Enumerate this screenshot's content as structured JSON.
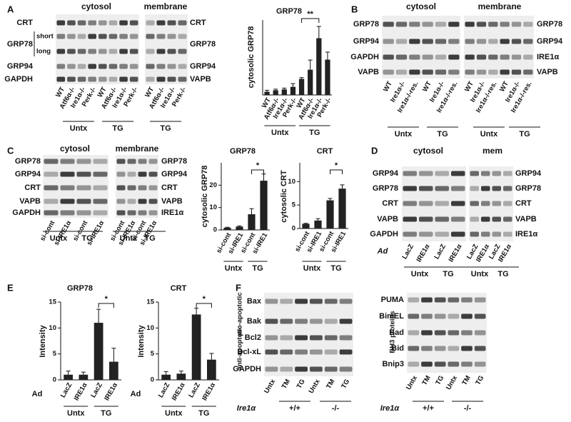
{
  "panels": [
    "A",
    "B",
    "C",
    "D",
    "E",
    "F"
  ],
  "blots": [
    {
      "headers": [
        "cytosol",
        "membrane"
      ],
      "left_labels": [
        "CRT",
        "GRP78",
        "GRP94",
        "GAPDH"
      ],
      "sub_labels": [
        "short",
        "long"
      ],
      "right_labels": [
        "CRT",
        "GRP78",
        "GRP94",
        "VAPB"
      ],
      "lanes": [
        "WT",
        "Atf6α-/-",
        "Ire1α-/-",
        "Perk-/-",
        "WT",
        "Atf6α-/-",
        "Ire1α-/-",
        "Perk-/-",
        "WT",
        "Atf6α-/-",
        "Ire1α-/-",
        "Perk-/-"
      ],
      "groups": [
        "Untx",
        "TG",
        "TG"
      ]
    },
    {
      "headers": [
        "cytosol",
        "membrane"
      ],
      "left_labels": [
        "GRP78",
        "GRP94",
        "GAPDH",
        "VAPB"
      ],
      "right_labels": [
        "GRP78",
        "GRP94",
        "IRE1α",
        "VAPB"
      ],
      "lanes": [
        "WT",
        "Ire1α-/-",
        "Ire1α-/-res.",
        "WT",
        "Ire1α-/-",
        "Ire1α-/-res.",
        "WT",
        "Ire1α-/-",
        "Ire1α-/-res.",
        "WT",
        "Ire1α-/-",
        "Ire1α-/-res."
      ],
      "groups": [
        "Untx",
        "TG",
        "Untx",
        "TG"
      ]
    },
    {
      "headers": [
        "cytosol",
        "membrane"
      ],
      "left_labels": [
        "GRP78",
        "GRP94",
        "CRT",
        "VAPB",
        "GAPDH"
      ],
      "right_labels": [
        "GRP78",
        "GRP94",
        "CRT",
        "VAPB",
        "IRE1α"
      ],
      "lanes": [
        "si-cont",
        "si-IRE1α",
        "si-cont",
        "si-IRE1α",
        "si-cont",
        "si-IRE1α",
        "si-cont",
        "si-IRE1α"
      ],
      "groups": [
        "Untx",
        "TG",
        "Untx",
        "TG"
      ]
    },
    {
      "headers": [
        "cytosol",
        "mem"
      ],
      "left_labels": [
        "GRP94",
        "GRP78",
        "CRT",
        "VAPB",
        "GAPDH"
      ],
      "right_labels": [
        "GRP94",
        "GRP78",
        "CRT",
        "VAPB",
        "IRE1α"
      ],
      "prefix": "Ad",
      "lanes": [
        "LacZ",
        "IRE1α",
        "LacZ",
        "IRE1α",
        "LacZ",
        "IRE1α",
        "LacZ",
        "IRE1α"
      ],
      "groups": [
        "Untx",
        "TG",
        "Untx",
        "TG"
      ]
    },
    {
      "left_labels": [
        "Bax",
        "Bak",
        "Bcl2",
        "Bcl-xL",
        "GAPDH"
      ],
      "side_labels": [
        "pro-apoptotic",
        "anti-apoptotic"
      ],
      "prefix": "Ire1α",
      "lanes": [
        "Untx",
        "TM",
        "TG",
        "Untx",
        "TM",
        "TG"
      ],
      "groups": [
        "+/+",
        "-/-"
      ]
    },
    {
      "left_labels": [
        "PUMA",
        "BimEL",
        "Bad",
        "Bid",
        "Bnip3"
      ],
      "side_labels": [
        "BH3 proteins"
      ],
      "prefix": "Ire1α",
      "lanes": [
        "Untx",
        "TM",
        "TG",
        "Untx",
        "TM",
        "TG"
      ],
      "groups": [
        "+/+",
        "-/-"
      ]
    }
  ],
  "chart_data": [
    {
      "type": "bar",
      "title": "GRP78",
      "ylabel": "cytosolic GRP78",
      "categories": [
        "WT",
        "Atf6α-/-",
        "Ire1α-/-",
        "Perk-/-",
        "WT",
        "Atf6α-/-",
        "Ire1α-/-",
        "Perk-/-"
      ],
      "groups": [
        "Untx",
        "TG"
      ],
      "values": [
        1.5,
        2.2,
        2.6,
        3.8,
        7.5,
        11.8,
        26.5,
        16.5
      ],
      "errors": [
        0.7,
        0.5,
        0.6,
        1.5,
        0.6,
        4.5,
        5.5,
        3.5
      ],
      "ylim": [
        0,
        35
      ],
      "annotation": "**",
      "color": "#222222"
    },
    {
      "type": "bar",
      "title": "GRP78",
      "ylabel": "cytosolic GRP78",
      "categories": [
        "si-cont",
        "si-IRE1",
        "si-cont",
        "si-IRE1"
      ],
      "groups": [
        "Untx",
        "TG"
      ],
      "values": [
        1,
        1.5,
        7,
        22
      ],
      "errors": [
        0.2,
        0.3,
        2.5,
        3
      ],
      "ylim": [
        0,
        30
      ],
      "yticks": [
        0,
        10,
        20
      ],
      "annotation": "*",
      "color": "#222222"
    },
    {
      "type": "bar",
      "title": "CRT",
      "ylabel": "cytosolic CRT",
      "categories": [
        "si-cont",
        "si-IRE1",
        "si-cont",
        "si-IRE1"
      ],
      "groups": [
        "Untx",
        "TG"
      ],
      "values": [
        1,
        1.7,
        6,
        8.5
      ],
      "errors": [
        0.1,
        0.4,
        0.4,
        0.8
      ],
      "ylim": [
        0,
        14
      ],
      "yticks": [
        0,
        5,
        10
      ],
      "annotation": "*",
      "color": "#222222"
    },
    {
      "type": "bar",
      "title": "GRP78",
      "ylabel": "Intensity",
      "prefix": "Ad",
      "categories": [
        "LacZ",
        "IRE1α",
        "LacZ",
        "IRE1α"
      ],
      "groups": [
        "Untx",
        "TG"
      ],
      "values": [
        1,
        1,
        11,
        3.5
      ],
      "errors": [
        0.7,
        0.5,
        2.6,
        2.6
      ],
      "ylim": [
        0,
        15
      ],
      "yticks": [
        0,
        5,
        10,
        15
      ],
      "annotation": "*",
      "color": "#222222"
    },
    {
      "type": "bar",
      "title": "CRT",
      "ylabel": "Intensity",
      "prefix": "Ad",
      "categories": [
        "LacZ",
        "IRE1α",
        "LacZ",
        "IRE1α"
      ],
      "groups": [
        "Untx",
        "TG"
      ],
      "values": [
        1,
        1.2,
        12.6,
        3.9
      ],
      "errors": [
        0.6,
        0.5,
        1.2,
        1.2
      ],
      "ylim": [
        0,
        15
      ],
      "yticks": [
        0,
        5,
        10,
        15
      ],
      "annotation": "*",
      "color": "#222222"
    }
  ]
}
